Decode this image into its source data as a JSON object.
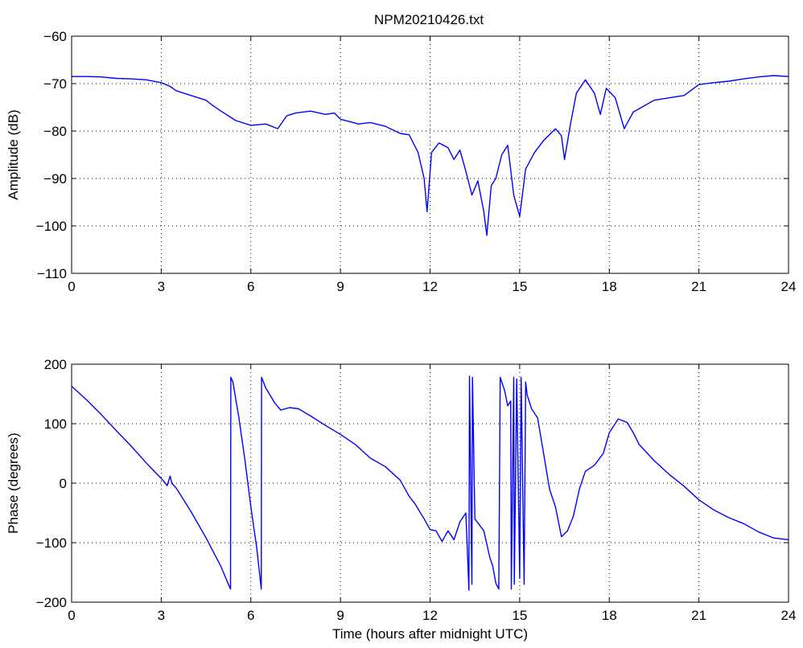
{
  "title": "NPM20210426.txt",
  "chart_data": [
    {
      "type": "line",
      "title": "NPM20210426.txt",
      "xlabel": "",
      "ylabel": "Amplitude (dB)",
      "xlim": [
        0,
        24
      ],
      "ylim": [
        -110,
        -60
      ],
      "xticks": [
        0,
        3,
        6,
        9,
        12,
        15,
        18,
        21,
        24
      ],
      "yticks": [
        -110,
        -100,
        -90,
        -80,
        -70,
        -60
      ],
      "ytick_labels": [
        "−110",
        "−100",
        "−90",
        "−80",
        "−70",
        "−60"
      ],
      "grid": true,
      "color": "#0000ff",
      "x": [
        0,
        0.5,
        1,
        1.5,
        2,
        2.5,
        3,
        3.3,
        3.5,
        4,
        4.5,
        4.7,
        5,
        5.5,
        6,
        6.5,
        6.9,
        7.2,
        7.5,
        8,
        8.5,
        8.8,
        9,
        9.3,
        9.6,
        10,
        10.5,
        11,
        11.3,
        11.6,
        11.8,
        11.9,
        12.05,
        12.3,
        12.6,
        12.8,
        13,
        13.2,
        13.4,
        13.6,
        13.8,
        13.9,
        14.05,
        14.2,
        14.4,
        14.6,
        14.8,
        15,
        15.2,
        15.5,
        15.8,
        16.2,
        16.4,
        16.5,
        16.7,
        16.9,
        17.2,
        17.5,
        17.7,
        17.9,
        18.2,
        18.5,
        18.8,
        19.5,
        20,
        20.5,
        21,
        21.5,
        22,
        22.5,
        23,
        23.5,
        24
      ],
      "y": [
        -68.5,
        -68.5,
        -68.6,
        -68.9,
        -69,
        -69.2,
        -69.8,
        -70.6,
        -71.5,
        -72.5,
        -73.5,
        -74.5,
        -75.8,
        -77.8,
        -78.8,
        -78.5,
        -79.5,
        -76.8,
        -76.2,
        -75.8,
        -76.5,
        -76.2,
        -77.5,
        -78,
        -78.5,
        -78.2,
        -79,
        -80.5,
        -80.8,
        -84.5,
        -90,
        -97,
        -84.5,
        -82.5,
        -83.5,
        -86,
        -84,
        -88.5,
        -93.5,
        -90.5,
        -97,
        -102,
        -91.5,
        -90,
        -85,
        -83,
        -93.5,
        -98,
        -88,
        -84.5,
        -82,
        -79.5,
        -81,
        -86,
        -78.5,
        -72,
        -69.2,
        -72,
        -76.5,
        -71,
        -73,
        -79.5,
        -76,
        -73.5,
        -73,
        -72.5,
        -70.2,
        -69.8,
        -69.5,
        -69,
        -68.6,
        -68.3,
        -68.5
      ],
      "x_label_marks": [
        4.7,
        5.1,
        5.2,
        8.9,
        10.8,
        11.9,
        12.1,
        13.3,
        13.9,
        14.7,
        15
      ]
    },
    {
      "type": "line",
      "title": "",
      "xlabel": "Time (hours after midnight UTC)",
      "ylabel": "Phase (degrees)",
      "xlim": [
        0,
        24
      ],
      "ylim": [
        -200,
        200
      ],
      "xticks": [
        0,
        3,
        6,
        9,
        12,
        15,
        18,
        21,
        24
      ],
      "yticks": [
        -200,
        -100,
        0,
        100,
        200
      ],
      "ytick_labels": [
        "−200",
        "−100",
        "0",
        "100",
        "200"
      ],
      "grid": true,
      "color": "#0000ff",
      "x": [
        0,
        0.5,
        1,
        1.5,
        2,
        2.5,
        3,
        3.2,
        3.3,
        3.35,
        3.5,
        4,
        4.5,
        5,
        5.25,
        5.32,
        5.33,
        5.4,
        5.6,
        5.8,
        6,
        6.2,
        6.35,
        6.36,
        6.5,
        6.8,
        7,
        7.3,
        7.6,
        8,
        8.5,
        9,
        9.5,
        10,
        10.5,
        11,
        11.3,
        11.5,
        11.8,
        12,
        12.2,
        12.4,
        12.6,
        12.8,
        13,
        13.2,
        13.3,
        13.32,
        13.4,
        13.42,
        13.5,
        13.8,
        14,
        14.1,
        14.2,
        14.3,
        14.35,
        14.5,
        14.6,
        14.7,
        14.72,
        14.8,
        14.82,
        14.9,
        15,
        15.05,
        15.15,
        15.2,
        15.25,
        15.4,
        15.6,
        15.8,
        16,
        16.2,
        16.4,
        16.6,
        16.8,
        17,
        17.2,
        17.5,
        17.8,
        18,
        18.3,
        18.6,
        18.8,
        19,
        19.5,
        20,
        20.5,
        21,
        21.5,
        22,
        22.5,
        23,
        23.5,
        24
      ],
      "y": [
        163,
        140,
        115,
        88,
        62,
        34,
        8,
        -4,
        12,
        0,
        -8,
        -48,
        -92,
        -140,
        -170,
        -178,
        178,
        170,
        110,
        40,
        -40,
        -110,
        -178,
        178,
        160,
        135,
        123,
        127,
        125,
        113,
        97,
        82,
        65,
        42,
        28,
        5,
        -22,
        -35,
        -60,
        -78,
        -80,
        -98,
        -80,
        -95,
        -65,
        -50,
        -180,
        180,
        -170,
        178,
        -60,
        -80,
        -125,
        -140,
        -168,
        -178,
        178,
        155,
        130,
        138,
        -178,
        178,
        -170,
        175,
        -160,
        178,
        -170,
        170,
        148,
        125,
        110,
        50,
        -10,
        -40,
        -90,
        -80,
        -55,
        -10,
        20,
        30,
        50,
        85,
        108,
        102,
        85,
        65,
        38,
        15,
        -5,
        -28,
        -45,
        -58,
        -68,
        -82,
        -92,
        -95
      ],
      "x_label_marks": []
    }
  ]
}
